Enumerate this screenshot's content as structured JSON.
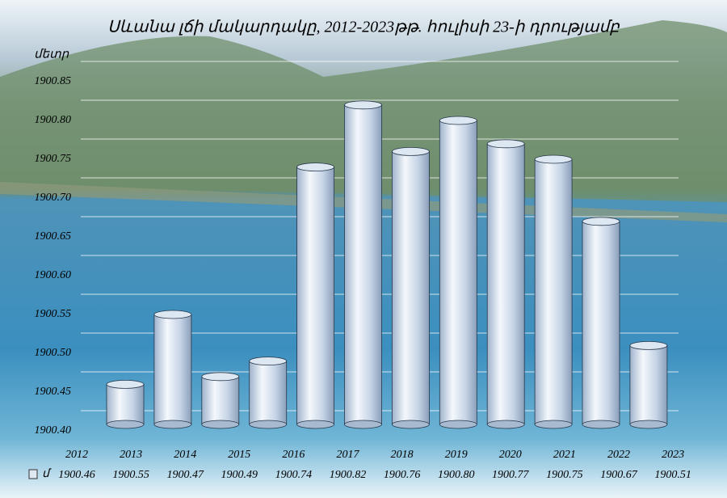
{
  "chart_data": {
    "type": "bar",
    "title": "Սևանա լճի մակարդակը, 2012-2023թթ. հուլիսի 23-ի դրությամբ",
    "y_label": "մետր",
    "categories": [
      "2012",
      "2013",
      "2014",
      "2015",
      "2016",
      "2017",
      "2018",
      "2019",
      "2020",
      "2021",
      "2022",
      "2023"
    ],
    "series": [
      {
        "name": "մ",
        "color": "#c9d8ea",
        "values": [
          1900.46,
          1900.55,
          1900.47,
          1900.49,
          1900.74,
          1900.82,
          1900.76,
          1900.8,
          1900.77,
          1900.75,
          1900.67,
          1900.51
        ],
        "value_labels": [
          "1900.46",
          "1900.55",
          "1900.47",
          "1900.49",
          "1900.74",
          "1900.82",
          "1900.76",
          "1900.80",
          "1900.77",
          "1900.75",
          "1900.67",
          "1900.51"
        ]
      }
    ],
    "ylim": [
      1900.4,
      1900.85
    ],
    "yticks": [
      {
        "value": 1900.4,
        "label": "1900.40"
      },
      1900.45,
      {
        "value": 1900.5,
        "label": "1900.50"
      },
      1900.55,
      {
        "value": 1900.6,
        "label": "1900.60"
      },
      1900.65,
      {
        "value": 1900.7,
        "label": "1900.70"
      },
      1900.75,
      {
        "value": 1900.8,
        "label": "1900.80"
      },
      1900.85
    ],
    "grid": true
  }
}
